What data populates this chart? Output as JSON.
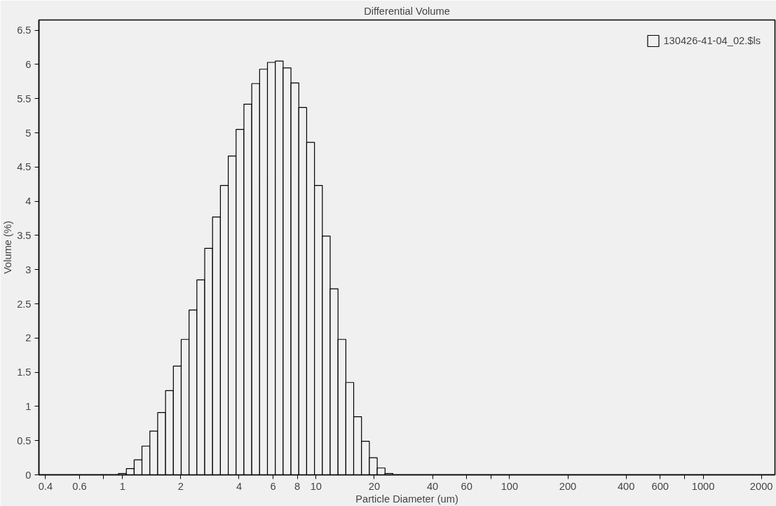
{
  "chart_data": {
    "type": "histogram",
    "title": "Differential Volume",
    "xlabel": "Particle Diameter (um)",
    "ylabel": "Volume (%)",
    "bins": [
      0.953,
      1.047,
      1.149,
      1.261,
      1.385,
      1.52,
      1.669,
      1.832,
      2.011,
      2.208,
      2.423,
      2.66,
      2.92,
      3.206,
      3.519,
      3.863,
      4.241,
      4.656,
      5.111,
      5.611,
      6.159,
      6.761,
      7.422,
      8.148,
      8.944,
      9.819,
      10.78,
      11.83,
      12.99,
      14.26,
      15.65,
      17.18,
      18.86,
      20.71,
      22.73,
      24.95
    ],
    "series": [
      {
        "name": "130426-41-04_02.$ls",
        "color": "#000000",
        "values": [
          0.02,
          0.09,
          0.22,
          0.42,
          0.64,
          0.91,
          1.23,
          1.59,
          1.98,
          2.41,
          2.85,
          3.31,
          3.77,
          4.23,
          4.66,
          5.05,
          5.42,
          5.72,
          5.93,
          6.03,
          6.05,
          5.95,
          5.73,
          5.37,
          4.86,
          4.23,
          3.49,
          2.72,
          1.98,
          1.35,
          0.85,
          0.49,
          0.25,
          0.1,
          0.02
        ]
      }
    ],
    "log": "x",
    "xlim": [
      0.37,
      2350
    ],
    "ylim": [
      0,
      6.65
    ],
    "xticks": [
      0.4,
      0.6,
      {
        "value": 0.8,
        "label": null
      },
      1,
      2,
      4,
      6,
      8,
      10,
      20,
      40,
      60,
      {
        "value": 80,
        "label": null
      },
      100,
      200,
      400,
      600,
      {
        "value": 800,
        "label": null
      },
      1000,
      2000
    ],
    "yticks": [
      0,
      0.5,
      1,
      1.5,
      2,
      2.5,
      3,
      3.5,
      4,
      4.5,
      5,
      5.5,
      6,
      6.5
    ],
    "grid": false,
    "legend": "top right"
  }
}
